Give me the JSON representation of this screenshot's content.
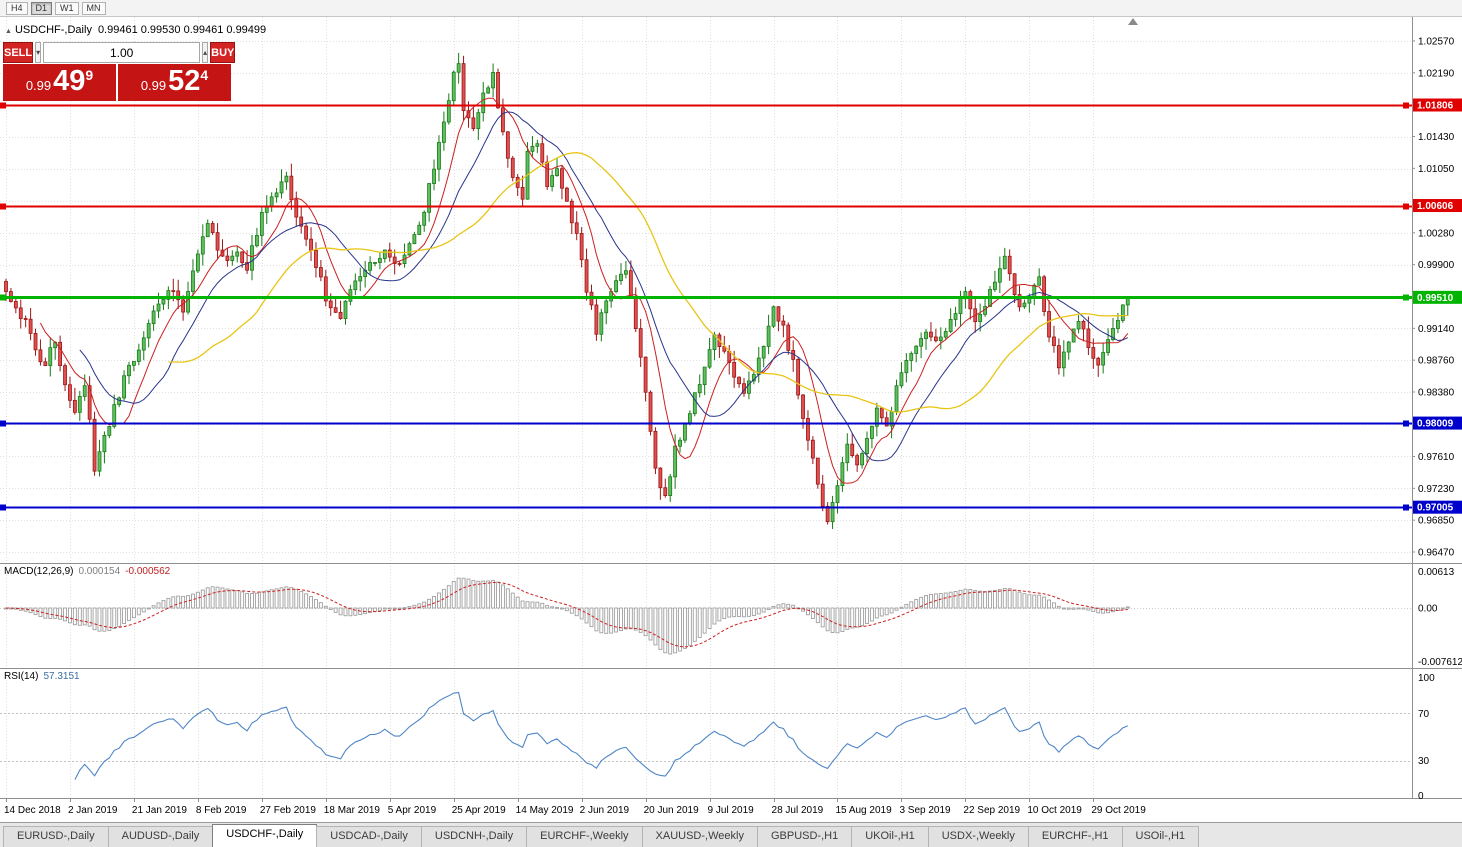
{
  "toolbar": {
    "timeframes": [
      {
        "label": "H4",
        "active": false
      },
      {
        "label": "D1",
        "active": true
      },
      {
        "label": "W1",
        "active": false
      },
      {
        "label": "MN",
        "active": false
      }
    ]
  },
  "chart": {
    "collapse_icon": "▲",
    "symbol_title": "USDCHF-,Daily",
    "ohlc": "0.99461 0.99530 0.99461 0.99499"
  },
  "trade_panel": {
    "sell_label": "SELL",
    "buy_label": "BUY",
    "volume": "1.00",
    "spinner_down": "▾",
    "spinner_up": "▴",
    "sell_price": {
      "figure": "0.99",
      "pips": "49",
      "point": "9"
    },
    "buy_price": {
      "figure": "0.99",
      "pips": "52",
      "point": "4"
    }
  },
  "price_axis": {
    "labels": [
      {
        "text": "1.02570",
        "price": 1.0257
      },
      {
        "text": "1.02190",
        "price": 1.0219
      },
      {
        "text": "1.01430",
        "price": 1.0143
      },
      {
        "text": "1.01050",
        "price": 1.0105
      },
      {
        "text": "1.00280",
        "price": 1.0028
      },
      {
        "text": "0.99900",
        "price": 0.999
      },
      {
        "text": "0.99140",
        "price": 0.9914
      },
      {
        "text": "0.98760",
        "price": 0.9876
      },
      {
        "text": "0.98380",
        "price": 0.9838
      },
      {
        "text": "0.97610",
        "price": 0.9761
      },
      {
        "text": "0.97230",
        "price": 0.9723
      },
      {
        "text": "0.96850",
        "price": 0.9685
      },
      {
        "text": "0.96470",
        "price": 0.9647
      }
    ]
  },
  "hlines": [
    {
      "price": 1.01806,
      "label": "1.01806",
      "color": "#e00000",
      "width": 2
    },
    {
      "price": 1.00606,
      "label": "1.00606",
      "color": "#e00000",
      "width": 2
    },
    {
      "price": 0.9951,
      "label": "0.99510",
      "color": "#00b400",
      "width": 3
    },
    {
      "price": 0.98009,
      "label": "0.98009",
      "color": "#0000cc",
      "width": 2
    },
    {
      "price": 0.97005,
      "label": "0.97005",
      "color": "#0000cc",
      "width": 2
    }
  ],
  "indicators": {
    "macd": {
      "name": "MACD(12,26,9)",
      "value_main": "0.000154",
      "value_signal": "-0.000562",
      "axis_top": "0.00613",
      "axis_zero": "0.00",
      "axis_bottom": "-0.0076120"
    },
    "rsi": {
      "name": "RSI(14)",
      "value": "57.3151",
      "axis_top": "100",
      "axis_upper": "70",
      "axis_lower": "30",
      "axis_bottom": "0",
      "levels": [
        70,
        30
      ]
    }
  },
  "time_axis": [
    "14 Dec 2018",
    "2 Jan 2019",
    "21 Jan 2019",
    "8 Feb 2019",
    "27 Feb 2019",
    "18 Mar 2019",
    "5 Apr 2019",
    "25 Apr 2019",
    "14 May 2019",
    "2 Jun 2019",
    "20 Jun 2019",
    "9 Jul 2019",
    "28 Jul 2019",
    "15 Aug 2019",
    "3 Sep 2019",
    "22 Sep 2019",
    "10 Oct 2019",
    "29 Oct 2019"
  ],
  "tabs": {
    "items": [
      "EURUSD-,Daily",
      "AUDUSD-,Daily",
      "USDCHF-,Daily",
      "USDCAD-,Daily",
      "USDCNH-,Daily",
      "EURCHF-,Weekly",
      "XAUUSD-,Weekly",
      "GBPUSD-,H1",
      "UKOil-,H1",
      "USDX-,Weekly",
      "EURCHF-,H1",
      "USOil-,H1"
    ],
    "active": "USDCHF-,Daily"
  },
  "chart_data": {
    "type": "candlestick",
    "symbol": "USDCHF-",
    "timeframe": "Daily",
    "current_ohlc": {
      "open": 0.99461,
      "high": 0.9953,
      "low": 0.99461,
      "close": 0.99499
    },
    "bid": 0.99499,
    "ask": 0.99524,
    "candle_count": 229,
    "last_close": 0.99499,
    "y_axis": {
      "min": 0.9647,
      "max": 1.0257,
      "step": 0.0038125
    },
    "moving_averages": [
      {
        "period": 8,
        "color": "#cc2020"
      },
      {
        "period": 16,
        "color": "#28348c"
      },
      {
        "period": 34,
        "color": "#e8c514"
      }
    ],
    "price_anchors": [
      [
        0,
        0.9958
      ],
      [
        4,
        0.992
      ],
      [
        6,
        0.9886
      ],
      [
        8,
        0.9868
      ],
      [
        10,
        0.9902
      ],
      [
        12,
        0.9848
      ],
      [
        14,
        0.9812
      ],
      [
        16,
        0.9846
      ],
      [
        17,
        0.98
      ],
      [
        18,
        0.9742
      ],
      [
        19,
        0.9768
      ],
      [
        21,
        0.98
      ],
      [
        24,
        0.9852
      ],
      [
        27,
        0.9892
      ],
      [
        30,
        0.993
      ],
      [
        33,
        0.9962
      ],
      [
        36,
        0.9938
      ],
      [
        39,
        1.0008
      ],
      [
        41,
        1.004
      ],
      [
        43,
        1.0012
      ],
      [
        45,
        0.9992
      ],
      [
        47,
        1.0006
      ],
      [
        49,
        0.9984
      ],
      [
        52,
        1.0052
      ],
      [
        55,
        1.0078
      ],
      [
        57,
        1.0092
      ],
      [
        59,
        1.0052
      ],
      [
        62,
        1.0008
      ],
      [
        65,
        0.9952
      ],
      [
        68,
        0.9928
      ],
      [
        71,
        0.9968
      ],
      [
        74,
        0.9994
      ],
      [
        77,
        1.0006
      ],
      [
        80,
        0.9988
      ],
      [
        83,
        1.0022
      ],
      [
        85,
        1.0058
      ],
      [
        87,
        1.0106
      ],
      [
        89,
        1.0162
      ],
      [
        91,
        1.0216
      ],
      [
        92,
        1.0232
      ],
      [
        93,
        1.0178
      ],
      [
        95,
        1.0156
      ],
      [
        97,
        1.019
      ],
      [
        99,
        1.0216
      ],
      [
        101,
        1.015
      ],
      [
        103,
        1.0096
      ],
      [
        105,
        1.0072
      ],
      [
        106,
        1.0122
      ],
      [
        108,
        1.0136
      ],
      [
        110,
        1.0088
      ],
      [
        112,
        1.0108
      ],
      [
        114,
        1.0062
      ],
      [
        116,
        1.0028
      ],
      [
        118,
        0.9962
      ],
      [
        120,
        0.9912
      ],
      [
        122,
        0.9944
      ],
      [
        124,
        0.9972
      ],
      [
        126,
        0.9988
      ],
      [
        128,
        0.9916
      ],
      [
        130,
        0.9838
      ],
      [
        132,
        0.9742
      ],
      [
        134,
        0.9712
      ],
      [
        136,
        0.9772
      ],
      [
        138,
        0.9796
      ],
      [
        140,
        0.9832
      ],
      [
        142,
        0.9868
      ],
      [
        144,
        0.9906
      ],
      [
        146,
        0.9884
      ],
      [
        148,
        0.9852
      ],
      [
        150,
        0.9838
      ],
      [
        152,
        0.9862
      ],
      [
        154,
        0.9896
      ],
      [
        156,
        0.9934
      ],
      [
        158,
        0.9914
      ],
      [
        160,
        0.9872
      ],
      [
        162,
        0.9806
      ],
      [
        164,
        0.9756
      ],
      [
        166,
        0.9706
      ],
      [
        167,
        0.9678
      ],
      [
        168,
        0.971
      ],
      [
        169,
        0.9728
      ],
      [
        171,
        0.9772
      ],
      [
        173,
        0.9748
      ],
      [
        175,
        0.9788
      ],
      [
        177,
        0.9814
      ],
      [
        179,
        0.9792
      ],
      [
        181,
        0.9846
      ],
      [
        183,
        0.987
      ],
      [
        185,
        0.9888
      ],
      [
        187,
        0.9912
      ],
      [
        189,
        0.9896
      ],
      [
        191,
        0.9906
      ],
      [
        193,
        0.9932
      ],
      [
        195,
        0.9956
      ],
      [
        197,
        0.9922
      ],
      [
        199,
        0.9946
      ],
      [
        201,
        0.9972
      ],
      [
        203,
        1.0002
      ],
      [
        204,
        0.9978
      ],
      [
        206,
        0.9936
      ],
      [
        208,
        0.9952
      ],
      [
        210,
        0.9972
      ],
      [
        212,
        0.9906
      ],
      [
        214,
        0.9872
      ],
      [
        216,
        0.9898
      ],
      [
        218,
        0.9924
      ],
      [
        220,
        0.9892
      ],
      [
        222,
        0.9868
      ],
      [
        224,
        0.9896
      ],
      [
        226,
        0.9924
      ],
      [
        228,
        0.99499
      ]
    ]
  }
}
